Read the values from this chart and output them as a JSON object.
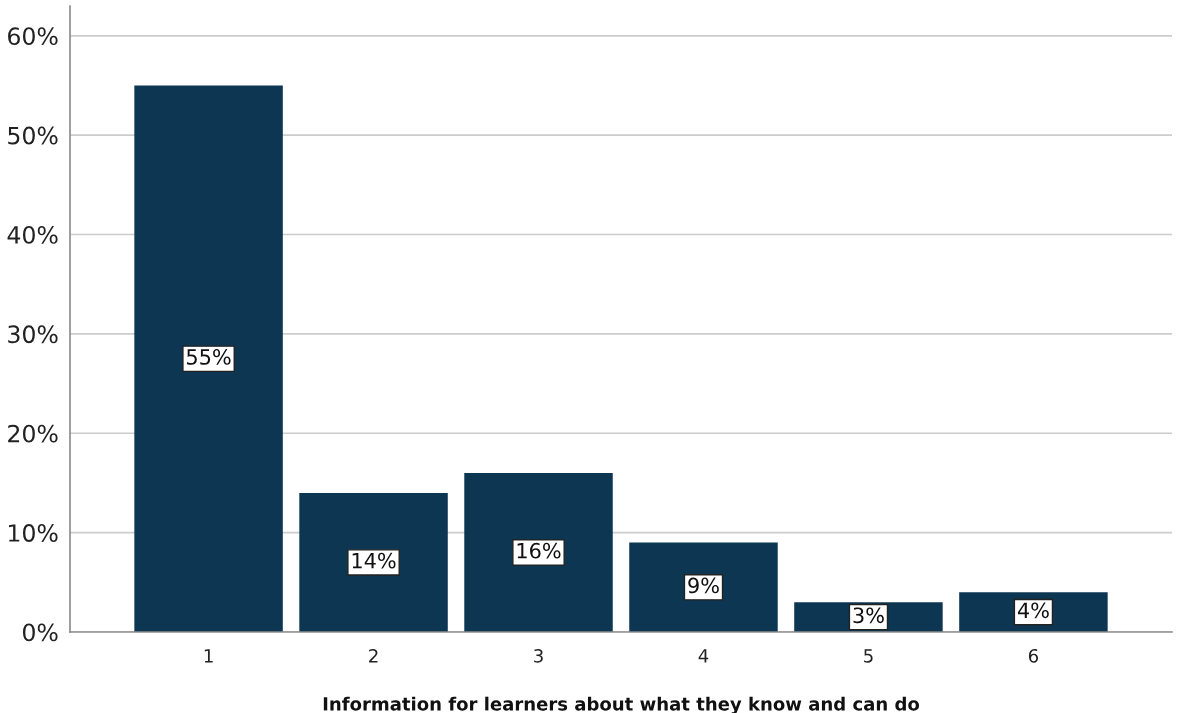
{
  "chart_data": {
    "type": "bar",
    "xlabel": "Information for learners about what they know and can do",
    "categories": [
      "1",
      "2",
      "3",
      "4",
      "5",
      "6"
    ],
    "values": [
      55,
      14,
      16,
      9,
      3,
      4
    ],
    "value_labels": [
      "55%",
      "14%",
      "16%",
      "9%",
      "3%",
      "4%"
    ],
    "color": "#0d3652",
    "ylim": [
      0,
      63
    ],
    "yticks": [
      {
        "value": 0,
        "label": "0%"
      },
      {
        "value": 10,
        "label": "10%"
      },
      {
        "value": 20,
        "label": "20%"
      },
      {
        "value": 30,
        "label": "30%"
      },
      {
        "value": 40,
        "label": "40%"
      },
      {
        "value": 50,
        "label": "50%"
      },
      {
        "value": 60,
        "label": "60%"
      }
    ],
    "grid": "y",
    "legend": false
  }
}
